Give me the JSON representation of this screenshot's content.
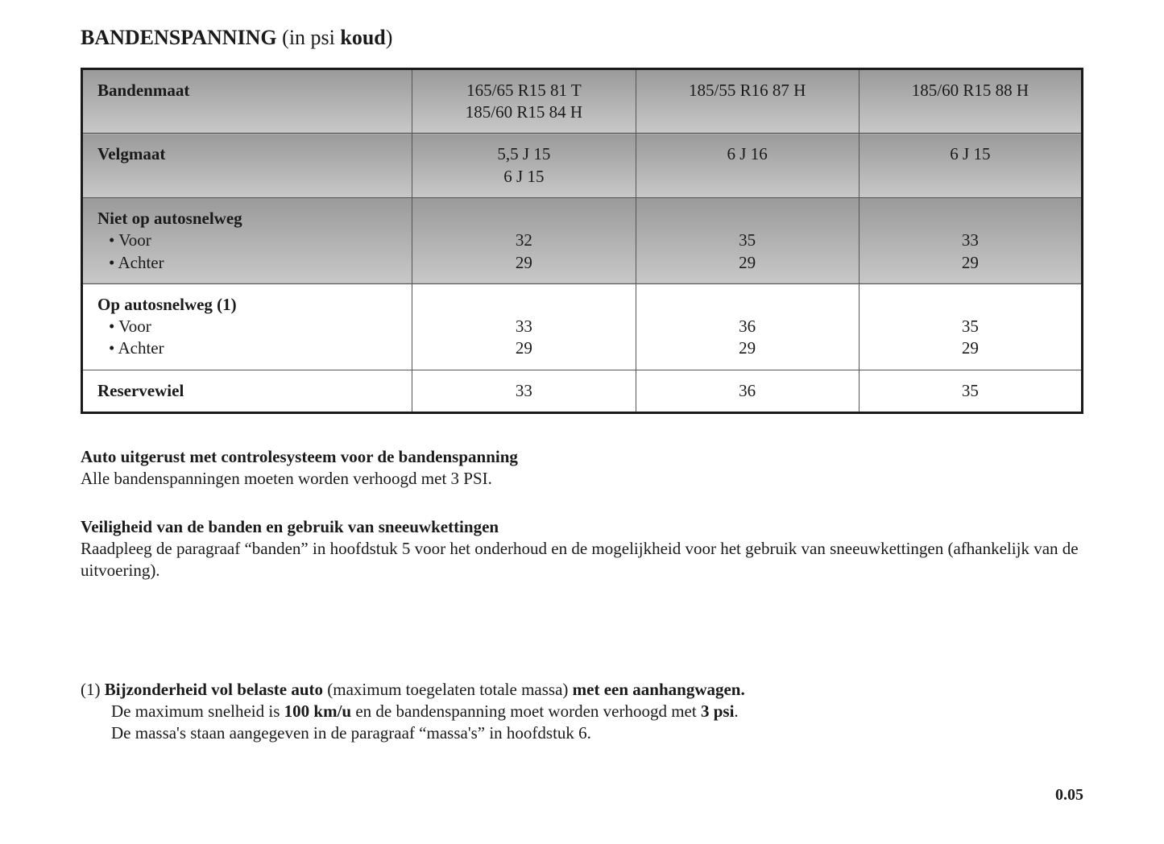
{
  "title": {
    "main": "BANDENSPANNING",
    "suffix_open": " (in psi ",
    "suffix_bold": "koud",
    "suffix_close": ")"
  },
  "table": {
    "columns": [
      "label",
      "c1",
      "c2",
      "c3"
    ],
    "rows": [
      {
        "type": "header",
        "shaded": true,
        "label": "Bandenmaat",
        "label_bold": true,
        "c1": [
          "165/65 R15 81 T",
          "185/60 R15 84 H"
        ],
        "c2": [
          "185/55 R16 87 H"
        ],
        "c3": [
          "185/60 R15 88 H"
        ]
      },
      {
        "type": "header",
        "shaded": true,
        "label": "Velgmaat",
        "label_bold": true,
        "c1": [
          "5,5 J 15",
          "6 J 15"
        ],
        "c2": [
          "6 J 16"
        ],
        "c3": [
          "6 J 15"
        ]
      },
      {
        "type": "data",
        "shaded": true,
        "label_title": "Niet op autosnelweg",
        "sub": [
          "Voor",
          "Achter"
        ],
        "c1": [
          "32",
          "29"
        ],
        "c2": [
          "35",
          "29"
        ],
        "c3": [
          "33",
          "29"
        ]
      },
      {
        "type": "data",
        "shaded": false,
        "label_title": "Op autosnelweg (1)",
        "sub": [
          "Voor",
          "Achter"
        ],
        "c1": [
          "33",
          "29"
        ],
        "c2": [
          "36",
          "29"
        ],
        "c3": [
          "35",
          "29"
        ]
      },
      {
        "type": "single",
        "shaded": false,
        "label": "Reservewiel",
        "label_bold": true,
        "c1": "33",
        "c2": "36",
        "c3": "35"
      }
    ]
  },
  "section1": {
    "heading": "Auto uitgerust met controlesysteem voor de bandenspanning",
    "body": "Alle bandenspanningen moeten worden verhoogd met 3 PSI."
  },
  "section2": {
    "heading": "Veiligheid van de banden en gebruik van sneeuwkettingen",
    "body": "Raadpleeg de paragraaf “banden” in hoofdstuk 5 voor het onderhoud en de mogelijkheid voor het gebruik van sneeuwkettingen (afhankelijk van de uitvoering)."
  },
  "footnote": {
    "marker": "(1)",
    "line1_pre": "Bijzonderheid vol belaste auto",
    "line1_mid": " (maximum toegelaten totale massa) ",
    "line1_post": "met een aanhangwagen.",
    "line2_a": "De maximum snelheid is ",
    "line2_b": "100 km/u",
    "line2_c": " en de bandenspanning moet worden verhoogd met ",
    "line2_d": "3 psi",
    "line2_e": ".",
    "line3": "De massa's staan aangegeven in de paragraaf “massa's” in hoofdstuk 6."
  },
  "page_number": "0.05",
  "style": {
    "colors": {
      "text": "#1a1a1a",
      "border": "#1a1a1a",
      "shade_top": "#9a9a9a",
      "shade_bottom": "#c8c8c8",
      "bg": "#ffffff"
    },
    "fonts": {
      "family": "Georgia serif",
      "body_pt": 16,
      "title_pt": 20
    }
  }
}
